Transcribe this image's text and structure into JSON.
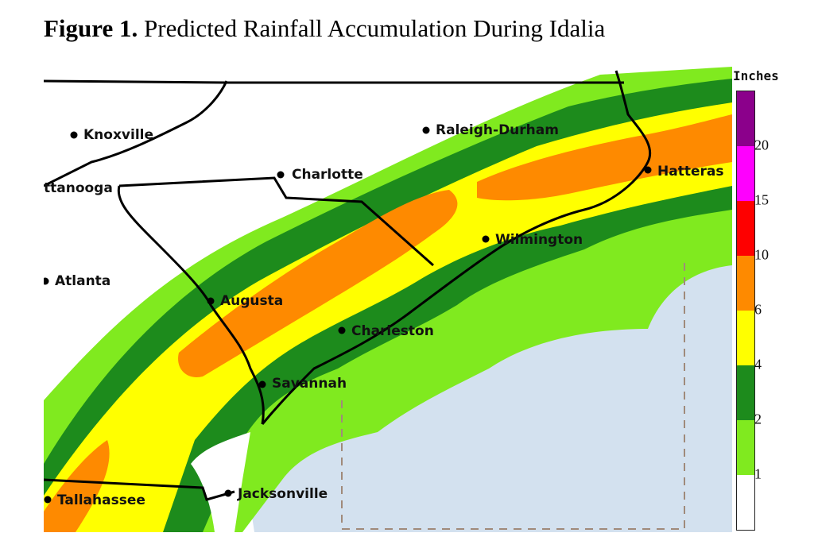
{
  "figure": {
    "label": "Figure 1.",
    "title": "Predicted Rainfall Accumulation During Idalia"
  },
  "map": {
    "cities": [
      {
        "name": "Knoxville"
      },
      {
        "name": "Raleigh-Durham"
      },
      {
        "name": "Charlotte"
      },
      {
        "name": "Hatteras"
      },
      {
        "name": "ttanooga"
      },
      {
        "name": "Wilmington"
      },
      {
        "name": "Atlanta"
      },
      {
        "name": "Augusta"
      },
      {
        "name": "Charleston"
      },
      {
        "name": "Savannah"
      },
      {
        "name": "Tallahassee"
      },
      {
        "name": "Jacksonville"
      }
    ],
    "colors": {
      "ocean": "#d3e1ef",
      "land": "#ffffff",
      "light_green": "#80ea1f",
      "dark_green": "#1d8b1c",
      "yellow": "#ffff00",
      "orange": "#fe8a00",
      "red": "#fe0000",
      "magenta": "#fe00fe",
      "purple": "#8b008b"
    }
  },
  "legend": {
    "title": "Inches",
    "ticks": [
      "20",
      "15",
      "10",
      "6",
      "4",
      "2",
      "1"
    ],
    "bins": [
      {
        "range": "0-1",
        "color": "#ffffff"
      },
      {
        "range": "1-2",
        "color": "#80ea1f"
      },
      {
        "range": "2-4",
        "color": "#1d8b1c"
      },
      {
        "range": "4-6",
        "color": "#ffff00"
      },
      {
        "range": "6-10",
        "color": "#fe8a00"
      },
      {
        "range": "10-15",
        "color": "#fe0000"
      },
      {
        "range": "15-20",
        "color": "#fe00fe"
      },
      {
        "range": "20+",
        "color": "#8b008b"
      }
    ]
  }
}
